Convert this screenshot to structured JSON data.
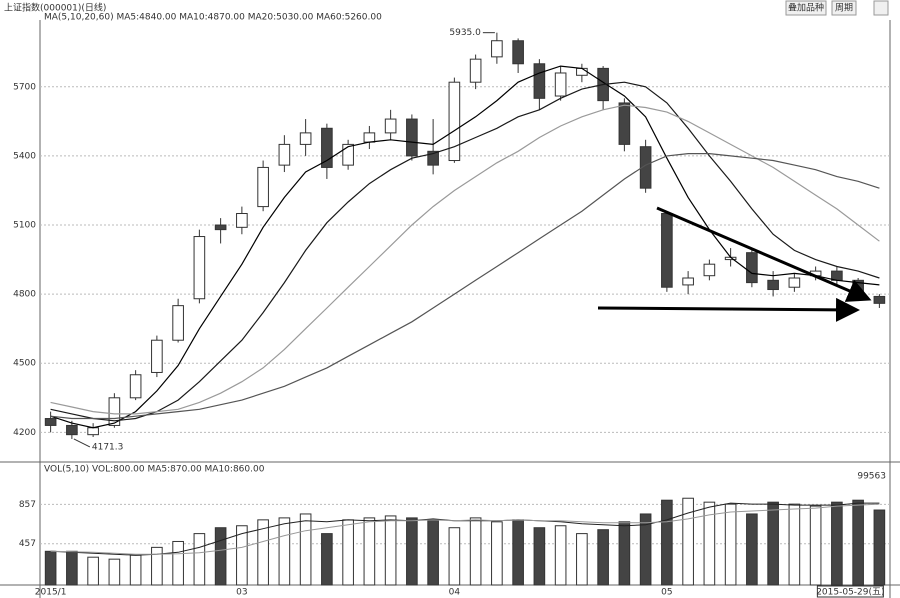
{
  "chart_data": {
    "type": "candlestick",
    "title": "上证指数(000001)(日线)",
    "legend_text": "MA(5,10,20,60) MA5:4840.00 MA10:4870.00 MA20:5030.00 MA60:5260.00",
    "buttons": [
      "叠加品种",
      "周期"
    ],
    "max_label": "5935.0",
    "min_label": "4171.3",
    "categories": [
      "2015/1",
      null,
      null,
      null,
      null,
      null,
      null,
      null,
      null,
      "03",
      null,
      null,
      null,
      null,
      null,
      null,
      null,
      null,
      null,
      "04",
      null,
      null,
      null,
      null,
      null,
      null,
      null,
      null,
      null,
      "05",
      null,
      null,
      null,
      null,
      null,
      null,
      null,
      null,
      null,
      "2015-05-29(五)"
    ],
    "open": [
      4260,
      4230,
      4190,
      4230,
      4350,
      4460,
      4600,
      4780,
      5100,
      5090,
      5180,
      5360,
      5450,
      5520,
      5360,
      5460,
      5500,
      5560,
      5420,
      5380,
      5720,
      5830,
      5900,
      5800,
      5660,
      5750,
      5780,
      5630,
      5440,
      5150,
      4840,
      4880,
      4950,
      4980,
      4860,
      4830,
      4880,
      4900,
      4860,
      4790
    ],
    "high": [
      4290,
      4250,
      4240,
      4370,
      4470,
      4620,
      4780,
      5080,
      5130,
      5180,
      5380,
      5490,
      5560,
      5540,
      5470,
      5530,
      5600,
      5580,
      5560,
      5740,
      5840,
      5935,
      5910,
      5820,
      5790,
      5800,
      5790,
      5650,
      5470,
      5160,
      4900,
      4950,
      5000,
      5000,
      4900,
      4890,
      4920,
      4920,
      4870,
      4800
    ],
    "low": [
      4200,
      4171.3,
      4180,
      4220,
      4340,
      4440,
      4590,
      4760,
      5020,
      5060,
      5160,
      5330,
      5400,
      5300,
      5340,
      5430,
      5470,
      5380,
      5320,
      5370,
      5690,
      5800,
      5760,
      5600,
      5640,
      5720,
      5600,
      5420,
      5240,
      4810,
      4800,
      4860,
      4920,
      4830,
      4790,
      4810,
      4860,
      4840,
      4770,
      4740
    ],
    "close": [
      4230,
      4190,
      4220,
      4350,
      4450,
      4600,
      4750,
      5050,
      5080,
      5150,
      5350,
      5450,
      5500,
      5350,
      5450,
      5500,
      5560,
      5400,
      5360,
      5720,
      5820,
      5900,
      5800,
      5650,
      5760,
      5780,
      5640,
      5450,
      5260,
      4830,
      4870,
      4930,
      4960,
      4850,
      4820,
      4870,
      4900,
      4860,
      4780,
      4760
    ],
    "series": [
      {
        "name": "MA5",
        "color": "#000000",
        "values": [
          4270,
          4240,
          4220,
          4240,
          4290,
          4380,
          4490,
          4650,
          4790,
          4930,
          5090,
          5220,
          5330,
          5380,
          5440,
          5460,
          5470,
          5460,
          5450,
          5510,
          5570,
          5640,
          5720,
          5760,
          5790,
          5780,
          5720,
          5660,
          5570,
          5390,
          5220,
          5080,
          4960,
          4890,
          4880,
          4890,
          4880,
          4860,
          4850,
          4840
        ]
      },
      {
        "name": "MA10",
        "color": "#1a1a1a",
        "values": [
          4300,
          4280,
          4260,
          4250,
          4260,
          4290,
          4340,
          4420,
          4510,
          4600,
          4720,
          4850,
          4990,
          5110,
          5200,
          5280,
          5340,
          5390,
          5410,
          5440,
          5480,
          5520,
          5570,
          5600,
          5650,
          5690,
          5710,
          5720,
          5700,
          5630,
          5520,
          5400,
          5290,
          5170,
          5060,
          4990,
          4950,
          4920,
          4900,
          4870
        ]
      },
      {
        "name": "MA20",
        "color": "#9a9a9a",
        "values": [
          4330,
          4310,
          4290,
          4280,
          4280,
          4290,
          4300,
          4330,
          4370,
          4420,
          4480,
          4560,
          4650,
          4740,
          4830,
          4920,
          5010,
          5100,
          5180,
          5250,
          5310,
          5370,
          5420,
          5480,
          5530,
          5570,
          5600,
          5620,
          5610,
          5590,
          5550,
          5500,
          5450,
          5400,
          5350,
          5290,
          5230,
          5170,
          5100,
          5030
        ]
      },
      {
        "name": "MA60",
        "color": "#555555",
        "values": [
          4270,
          4260,
          4260,
          4260,
          4270,
          4280,
          4290,
          4300,
          4320,
          4340,
          4370,
          4400,
          4440,
          4480,
          4530,
          4580,
          4630,
          4680,
          4740,
          4800,
          4860,
          4920,
          4980,
          5040,
          5100,
          5160,
          5230,
          5300,
          5360,
          5400,
          5410,
          5410,
          5400,
          5390,
          5380,
          5360,
          5340,
          5310,
          5290,
          5260
        ]
      }
    ],
    "ylim": [
      4080,
      5990
    ],
    "yticks": [
      4200,
      4500,
      4800,
      5100,
      5400,
      5700
    ],
    "grid": true,
    "volume_legend": "VOL(5,10) VOL:800.00 MA5:870.00 MA10:860.00",
    "volume_max_label": "99563",
    "volume": [
      380,
      380,
      320,
      300,
      340,
      420,
      480,
      560,
      620,
      640,
      700,
      720,
      760,
      560,
      700,
      720,
      740,
      720,
      700,
      620,
      720,
      680,
      700,
      620,
      640,
      560,
      600,
      680,
      760,
      900,
      920,
      880,
      860,
      760,
      880,
      860,
      840,
      880,
      900,
      800
    ],
    "volume_series": [
      {
        "name": "MA5",
        "color": "#222222",
        "values": [
          380,
          370,
          360,
          350,
          340,
          350,
          370,
          420,
          490,
          560,
          610,
          660,
          690,
          680,
          700,
          690,
          700,
          690,
          710,
          690,
          690,
          690,
          700,
          690,
          680,
          660,
          650,
          640,
          650,
          700,
          770,
          830,
          870,
          860,
          860,
          850,
          850,
          850,
          870,
          870
        ]
      },
      {
        "name": "MA10",
        "color": "#999999",
        "values": [
          380,
          375,
          370,
          360,
          350,
          350,
          355,
          365,
          390,
          420,
          480,
          540,
          590,
          620,
          650,
          680,
          690,
          690,
          700,
          690,
          700,
          690,
          700,
          690,
          690,
          680,
          670,
          670,
          670,
          680,
          710,
          750,
          780,
          790,
          800,
          810,
          820,
          840,
          850,
          860
        ]
      }
    ],
    "vlim": [
      37,
      1187
    ],
    "vticks": [
      457,
      857
    ]
  }
}
